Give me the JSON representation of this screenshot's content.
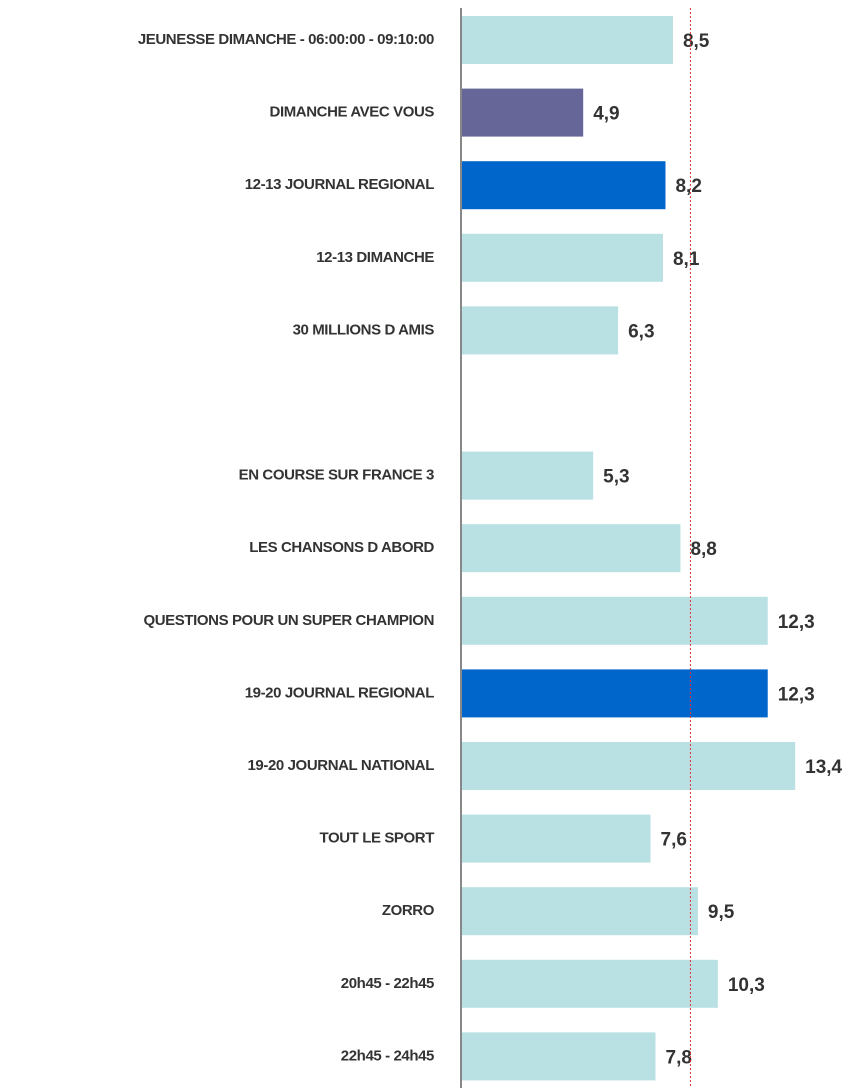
{
  "chart_data": {
    "type": "barh",
    "categories": [
      "JEUNESSE DIMANCHE - 06:00:00 - 09:10:00",
      "DIMANCHE AVEC VOUS",
      "12-13 JOURNAL REGIONAL",
      "12-13 DIMANCHE",
      "30 MILLIONS D AMIS",
      null,
      "EN COURSE SUR FRANCE 3",
      "LES CHANSONS D ABORD",
      "QUESTIONS POUR UN SUPER CHAMPION",
      "19-20 JOURNAL REGIONAL",
      "19-20 JOURNAL NATIONAL",
      "TOUT LE SPORT",
      "ZORRO",
      "20h45 - 22h45",
      "22h45 - 24h45"
    ],
    "values": [
      8.5,
      4.9,
      8.2,
      8.1,
      6.3,
      null,
      5.3,
      8.8,
      12.3,
      12.3,
      13.4,
      7.6,
      9.5,
      10.3,
      7.8
    ],
    "value_labels": [
      "8,5",
      "4,9",
      "8,2",
      "8,1",
      "6,3",
      null,
      "5,3",
      "8,8",
      "12,3",
      "12,3",
      "13,4",
      "7,6",
      "9,5",
      "10,3",
      "7,8"
    ],
    "colors": [
      "#b9e0e3",
      "#666699",
      "#0066cc",
      "#b9e0e3",
      "#b9e0e3",
      null,
      "#b9e0e3",
      "#b9e0e3",
      "#b9e0e3",
      "#0066cc",
      "#b9e0e3",
      "#b9e0e3",
      "#b9e0e3",
      "#b9e0e3",
      "#b9e0e3"
    ],
    "xlim": [
      0,
      15.8
    ],
    "reference_line": 9.2,
    "reference_color": "#e03030"
  }
}
